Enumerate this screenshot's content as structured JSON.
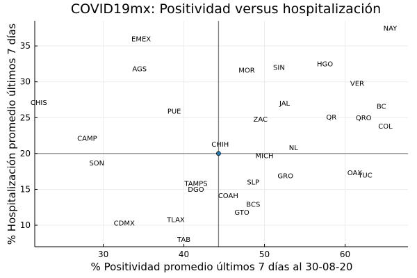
{
  "chart_data": {
    "type": "scatter",
    "title": "COVID19mx: Positividad versus hospitalización",
    "xlabel": "% Positividad promedio últimos 7 días al 30-08-20",
    "ylabel": "% Hospitalización promedio últimos 7 días",
    "xlim": [
      21.5,
      67.8
    ],
    "ylim": [
      7.0,
      38.5
    ],
    "xticks": [
      30,
      40,
      50,
      60
    ],
    "yticks": [
      10,
      15,
      20,
      25,
      30,
      35
    ],
    "grid": true,
    "reference_lines": {
      "x": 44.3,
      "y": 20.0
    },
    "marker": {
      "x": 44.3,
      "y": 20.0,
      "color": "#2a7ab0"
    },
    "points": [
      {
        "label": "NAY",
        "x": 65.6,
        "y": 37.5
      },
      {
        "label": "EMEX",
        "x": 34.7,
        "y": 36.0
      },
      {
        "label": "HGO",
        "x": 57.5,
        "y": 32.5
      },
      {
        "label": "AGS",
        "x": 34.5,
        "y": 31.8
      },
      {
        "label": "SIN",
        "x": 51.8,
        "y": 32.0
      },
      {
        "label": "MOR",
        "x": 47.8,
        "y": 31.6
      },
      {
        "label": "VER",
        "x": 61.5,
        "y": 29.8
      },
      {
        "label": "CHIS",
        "x": 22.0,
        "y": 27.1
      },
      {
        "label": "JAL",
        "x": 52.5,
        "y": 27.0
      },
      {
        "label": "BC",
        "x": 64.5,
        "y": 26.6
      },
      {
        "label": "PUE",
        "x": 38.8,
        "y": 25.9
      },
      {
        "label": "QR",
        "x": 58.3,
        "y": 25.1
      },
      {
        "label": "QRO",
        "x": 62.3,
        "y": 25.0
      },
      {
        "label": "ZAC",
        "x": 49.5,
        "y": 24.8
      },
      {
        "label": "COL",
        "x": 65.0,
        "y": 23.8
      },
      {
        "label": "CAMP",
        "x": 28.0,
        "y": 22.1
      },
      {
        "label": "CHIH",
        "x": 44.5,
        "y": 21.3
      },
      {
        "label": "NL",
        "x": 53.6,
        "y": 20.8
      },
      {
        "label": "MICH",
        "x": 50.0,
        "y": 19.7
      },
      {
        "label": "SON",
        "x": 29.2,
        "y": 18.7
      },
      {
        "label": "OAX",
        "x": 61.2,
        "y": 17.3
      },
      {
        "label": "YUC",
        "x": 62.5,
        "y": 17.0
      },
      {
        "label": "GRO",
        "x": 52.6,
        "y": 16.9
      },
      {
        "label": "SLP",
        "x": 48.6,
        "y": 16.0
      },
      {
        "label": "TAMPS",
        "x": 41.5,
        "y": 15.8
      },
      {
        "label": "DGO",
        "x": 41.5,
        "y": 15.0
      },
      {
        "label": "COAH",
        "x": 45.5,
        "y": 14.1
      },
      {
        "label": "BCS",
        "x": 48.6,
        "y": 12.9
      },
      {
        "label": "GTO",
        "x": 47.2,
        "y": 11.8
      },
      {
        "label": "TLAX",
        "x": 39.0,
        "y": 10.8
      },
      {
        "label": "CDMX",
        "x": 32.6,
        "y": 10.3
      },
      {
        "label": "TAB",
        "x": 40.0,
        "y": 8.0
      }
    ]
  }
}
